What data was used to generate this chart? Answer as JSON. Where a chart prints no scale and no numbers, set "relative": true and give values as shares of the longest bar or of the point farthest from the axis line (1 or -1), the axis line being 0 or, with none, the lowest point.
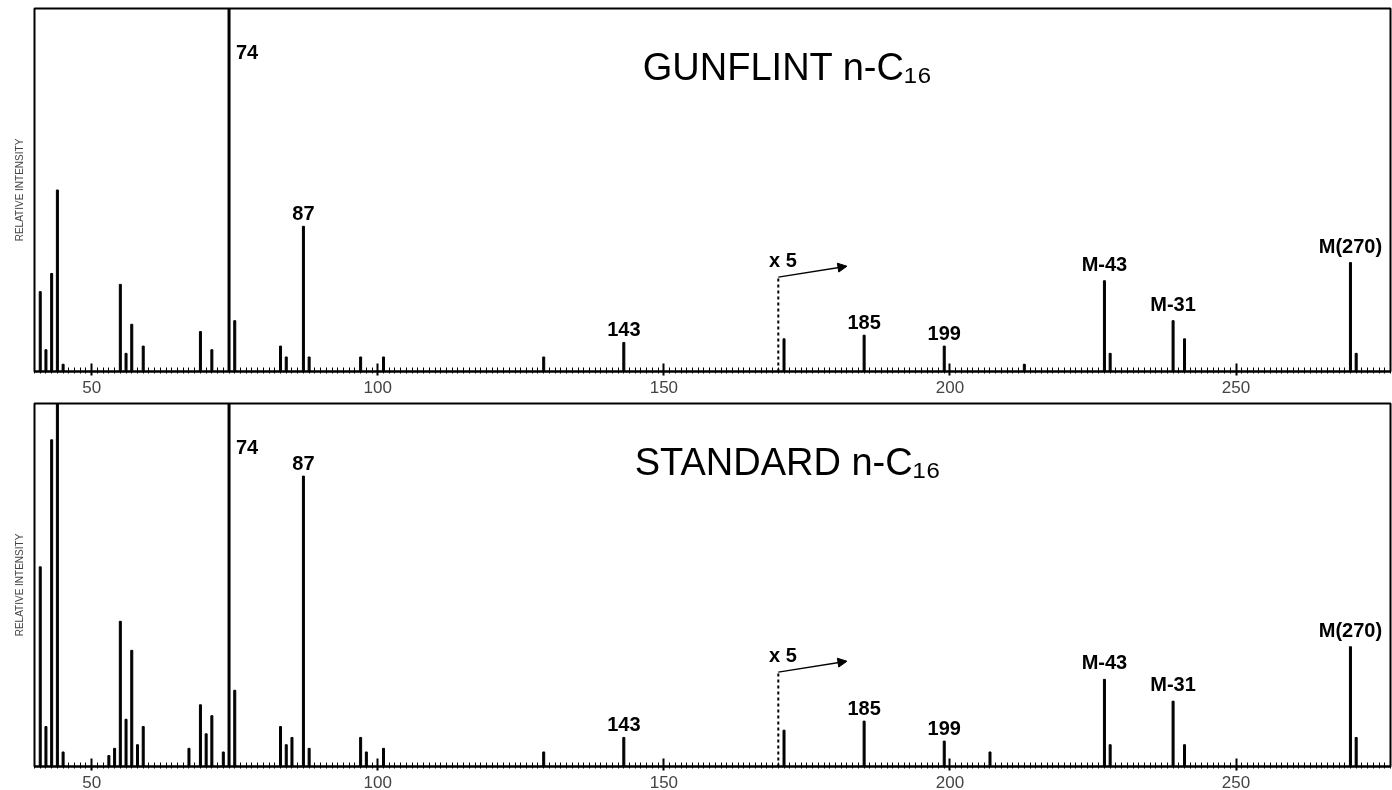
{
  "chart_data": [
    {
      "type": "bar",
      "title": "GUNFLINT   n-C₁₆",
      "ylabel": "RELATIVE INTENSITY",
      "relative": true,
      "color": "#000000",
      "xlim": [
        40,
        277
      ],
      "xticks": [
        50,
        100,
        150,
        200,
        250
      ],
      "x": [
        41,
        42,
        43,
        44,
        45,
        55,
        56,
        57,
        59,
        69,
        71,
        74,
        75,
        83,
        84,
        87,
        88,
        97,
        101,
        129,
        143,
        171,
        185,
        199,
        213,
        227,
        228,
        239,
        241,
        270,
        271
      ],
      "values": [
        0.22,
        0.06,
        0.27,
        0.5,
        0.02,
        0.24,
        0.05,
        0.13,
        0.07,
        0.11,
        0.06,
        1,
        0.14,
        0.07,
        0.04,
        0.4,
        0.04,
        0.04,
        0.04,
        0.04,
        0.08,
        0.09,
        0.1,
        0.07,
        0.02,
        0.25,
        0.05,
        0.14,
        0.09,
        0.3,
        0.05
      ],
      "annotations": [
        {
          "text": "74",
          "x": 74,
          "y": 1
        },
        {
          "text": "87",
          "x": 87,
          "y": 0.4
        },
        {
          "text": "143",
          "x": 143,
          "y": 0.08
        },
        {
          "text": "185",
          "x": 185,
          "y": 0.1
        },
        {
          "text": "199",
          "x": 199,
          "y": 0.07
        },
        {
          "text": "M-43",
          "x": 227,
          "y": 0.25
        },
        {
          "text": "M-31",
          "x": 239,
          "y": 0.14
        },
        {
          "text": "M(270)",
          "x": 270,
          "y": 0.3
        }
      ],
      "ref_lines": [
        {
          "axis": "x",
          "value": 170,
          "label": "x 5",
          "line_style": "dashed"
        }
      ]
    },
    {
      "type": "bar",
      "title": "STANDARD   n-C₁₆",
      "ylabel": "RELATIVE INTENSITY",
      "relative": true,
      "color": "#000000",
      "xlim": [
        40,
        277
      ],
      "xticks": [
        50,
        100,
        150,
        200,
        250
      ],
      "x": [
        41,
        42,
        43,
        44,
        45,
        53,
        54,
        55,
        56,
        57,
        58,
        59,
        67,
        69,
        70,
        71,
        73,
        74,
        75,
        83,
        84,
        85,
        87,
        88,
        97,
        98,
        101,
        129,
        143,
        171,
        185,
        199,
        207,
        227,
        228,
        239,
        241,
        270,
        271
      ],
      "values": [
        0.55,
        0.11,
        0.9,
        1,
        0.04,
        0.03,
        0.05,
        0.4,
        0.13,
        0.32,
        0.06,
        0.11,
        0.05,
        0.17,
        0.09,
        0.14,
        0.04,
        1,
        0.21,
        0.11,
        0.06,
        0.08,
        0.8,
        0.05,
        0.08,
        0.04,
        0.05,
        0.04,
        0.08,
        0.1,
        0.125,
        0.07,
        0.04,
        0.24,
        0.06,
        0.18,
        0.06,
        0.33,
        0.08
      ],
      "annotations": [
        {
          "text": "74",
          "x": 74,
          "y": 1
        },
        {
          "text": "87",
          "x": 87,
          "y": 0.8
        },
        {
          "text": "143",
          "x": 143,
          "y": 0.08
        },
        {
          "text": "185",
          "x": 185,
          "y": 0.125
        },
        {
          "text": "199",
          "x": 199,
          "y": 0.07
        },
        {
          "text": "M-43",
          "x": 227,
          "y": 0.24
        },
        {
          "text": "M-31",
          "x": 239,
          "y": 0.18
        },
        {
          "text": "M(270)",
          "x": 270,
          "y": 0.33
        }
      ],
      "ref_lines": [
        {
          "axis": "x",
          "value": 170,
          "label": "x 5",
          "line_style": "dashed"
        }
      ]
    }
  ]
}
